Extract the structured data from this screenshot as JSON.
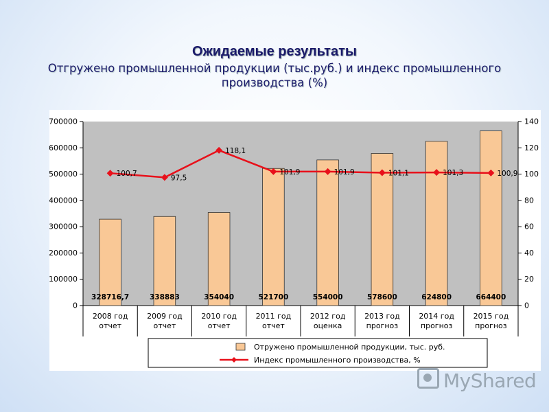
{
  "slide": {
    "title": "Ожидаемые результаты",
    "subtitle": "Отгружено промышленной продукции (тыс.руб.) и индекс промышленного производства (%)"
  },
  "watermark": {
    "text": "MyShared"
  },
  "chart_data": {
    "type": "bar",
    "categories": [
      [
        "2008 год",
        "отчет"
      ],
      [
        "2009 год",
        "отчет"
      ],
      [
        "2010 год",
        "отчет"
      ],
      [
        "2011 год",
        "отчет"
      ],
      [
        "2012 год",
        "оценка"
      ],
      [
        "2013 год",
        "прогноз"
      ],
      [
        "2014 год",
        "прогноз"
      ],
      [
        "2015 год",
        "прогноз"
      ]
    ],
    "series": [
      {
        "name": "Отружено промышленной продукции, тыс. руб.",
        "type": "bar",
        "axis": "left",
        "color": "#f9c896",
        "values": [
          328716.7,
          338883,
          354040,
          521700,
          554000,
          578600,
          624800,
          664400
        ],
        "labels": [
          "328716,7",
          "338883",
          "354040",
          "521700",
          "554000",
          "578600",
          "624800",
          "664400"
        ]
      },
      {
        "name": "Индекс промышленного производства, %",
        "type": "line",
        "axis": "right",
        "color": "#e8101a",
        "values": [
          100.7,
          97.5,
          118.1,
          101.9,
          101.9,
          101.1,
          101.3,
          100.9
        ],
        "labels": [
          "100,7",
          "97,5",
          "118,1",
          "101,9",
          "101,9",
          "101,1",
          "101,3",
          "100,9"
        ]
      }
    ],
    "y_left": {
      "min": 0,
      "max": 700000,
      "ticks": [
        "0",
        "100000",
        "200000",
        "300000",
        "400000",
        "500000",
        "600000",
        "700000"
      ]
    },
    "y_right": {
      "min": 0,
      "max": 140,
      "ticks": [
        "0",
        "20",
        "40",
        "60",
        "80",
        "100",
        "120",
        "140"
      ]
    },
    "plot_background": "#c0c0c0",
    "grid": false,
    "legend_position": "bottom"
  }
}
